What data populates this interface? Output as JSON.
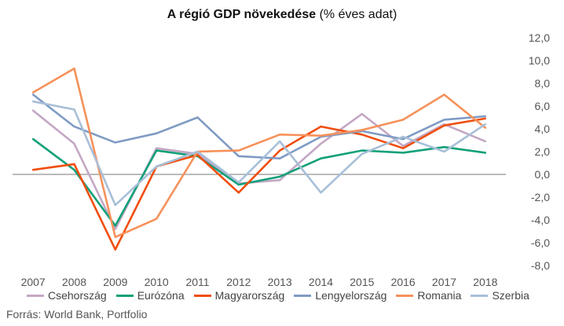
{
  "chart_data": {
    "type": "line",
    "title_main": "A régió GDP növekedése",
    "title_rest": "(% éves adat)",
    "categories": [
      "2007",
      "2008",
      "2009",
      "2010",
      "2011",
      "2012",
      "2013",
      "2014",
      "2015",
      "2016",
      "2017",
      "2018"
    ],
    "ylim": [
      -8,
      12
    ],
    "yticks": [
      "12,0",
      "10,0",
      "8,0",
      "6,0",
      "4,0",
      "2,0",
      "0,0",
      "-2,0",
      "-4,0",
      "-6,0",
      "-8,0"
    ],
    "ytick_values": [
      12,
      10,
      8,
      6,
      4,
      2,
      0,
      -2,
      -4,
      -6,
      -8
    ],
    "grid": false,
    "legend_position": "bottom",
    "series": [
      {
        "name": "Csehország",
        "color": "#c4a7c4",
        "values": [
          5.6,
          2.7,
          -4.8,
          2.3,
          1.8,
          -0.8,
          -0.5,
          2.7,
          5.3,
          2.5,
          4.4,
          2.9
        ]
      },
      {
        "name": "Eurózóna",
        "color": "#12a079",
        "values": [
          3.1,
          0.4,
          -4.5,
          2.1,
          1.6,
          -0.9,
          -0.2,
          1.4,
          2.1,
          1.9,
          2.4,
          1.9
        ]
      },
      {
        "name": "Magyarország",
        "color": "#f04e0e",
        "values": [
          0.4,
          0.9,
          -6.6,
          0.7,
          1.7,
          -1.6,
          2.1,
          4.2,
          3.5,
          2.3,
          4.3,
          4.9
        ]
      },
      {
        "name": "Lengyelország",
        "color": "#7f9bc4",
        "values": [
          7.0,
          4.2,
          2.8,
          3.6,
          5.0,
          1.6,
          1.4,
          3.3,
          3.8,
          3.1,
          4.8,
          5.1
        ]
      },
      {
        "name": "Romania",
        "color": "#f6915a",
        "values": [
          7.2,
          9.3,
          -5.5,
          -3.9,
          2.0,
          2.1,
          3.5,
          3.4,
          3.9,
          4.8,
          7.0,
          4.1
        ]
      },
      {
        "name": "Szerbia",
        "color": "#a8bfd8",
        "values": [
          6.4,
          5.7,
          -2.7,
          0.7,
          2.0,
          -0.7,
          2.9,
          -1.6,
          1.8,
          3.3,
          2.0,
          4.4
        ]
      }
    ],
    "source": "Forrás: World Bank, Portfolio"
  }
}
